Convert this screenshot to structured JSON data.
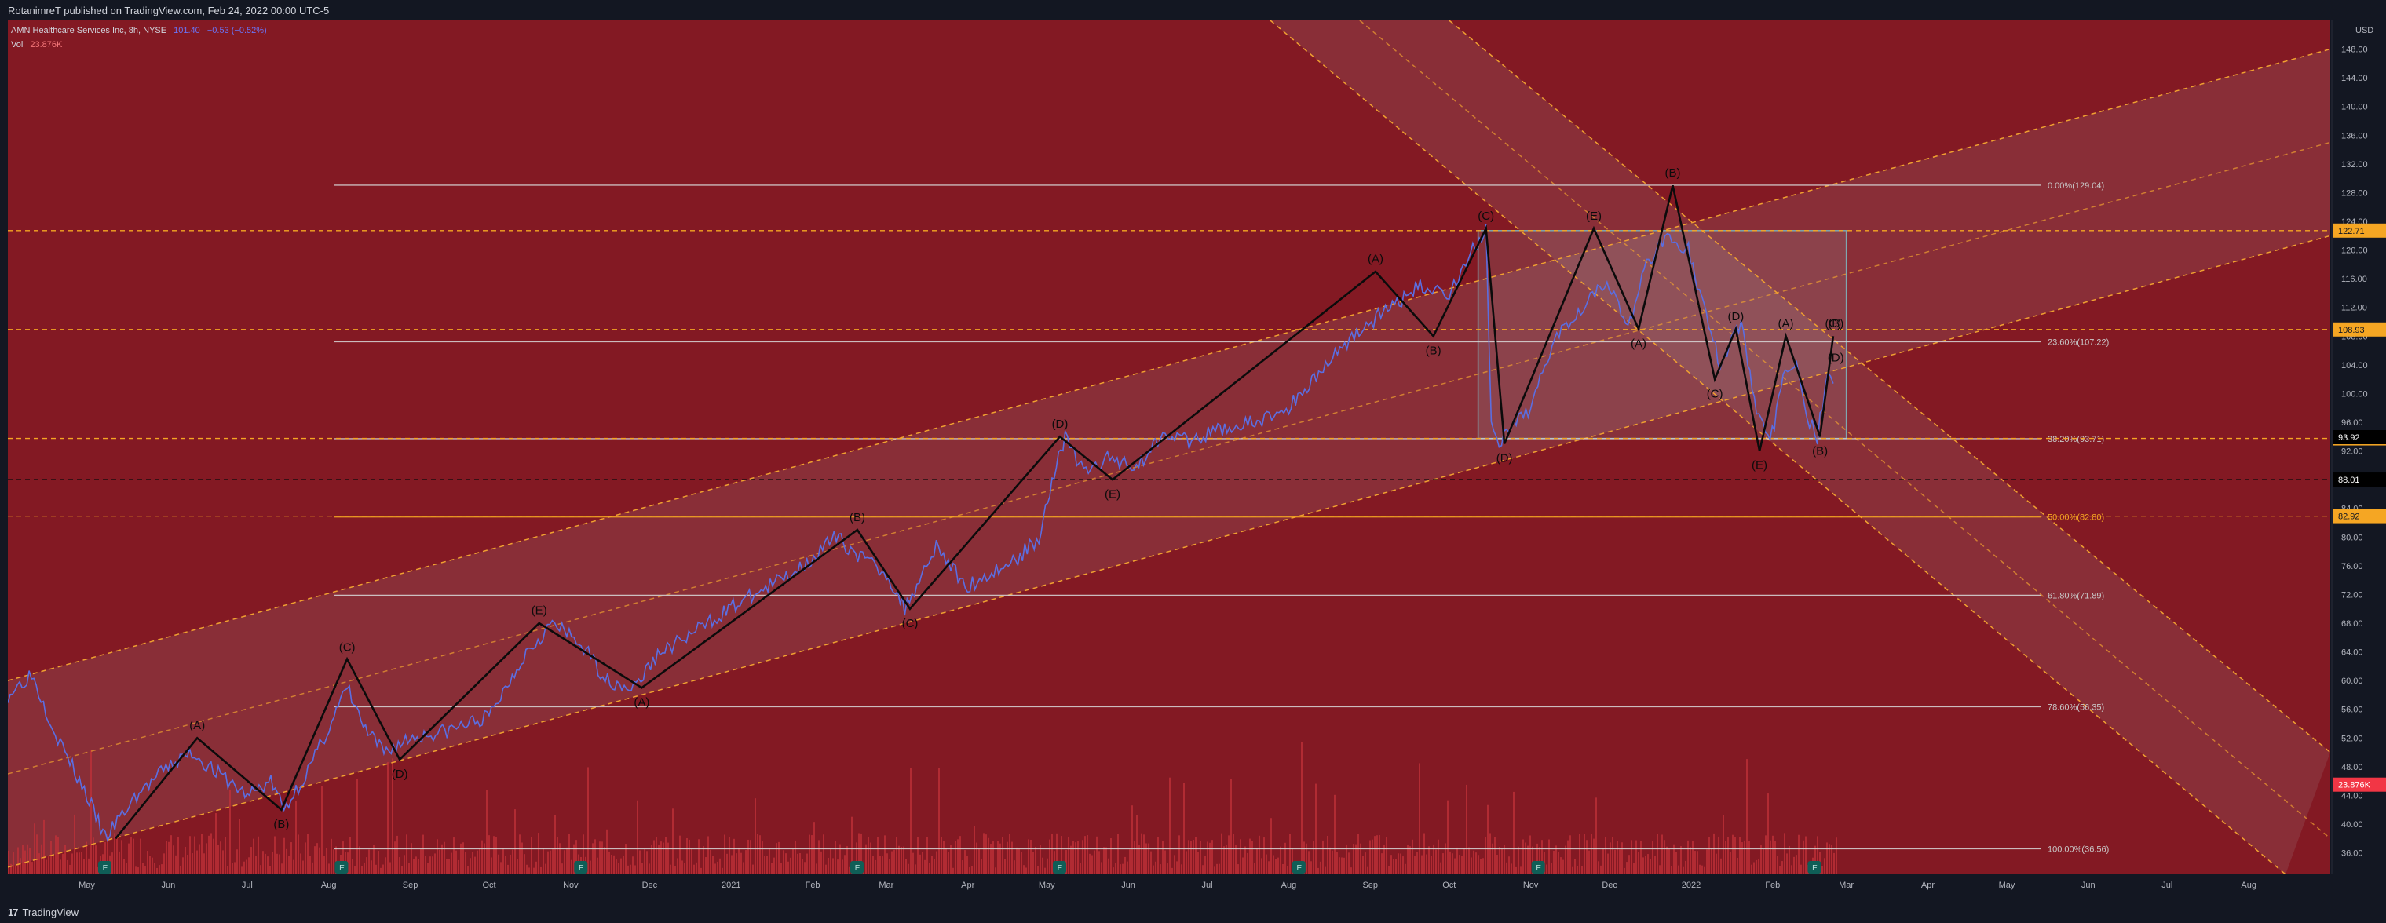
{
  "header": {
    "publisher_line": "RotanimreT published on TradingView.com, Feb 24, 2022 00:00 UTC-5",
    "symbol": "AMN Healthcare Services Inc, 8h, NYSE",
    "last_value": "101.40",
    "change": "−0.53 (−0.52%)",
    "volume_label": "Vol",
    "volume_value": "23.876K"
  },
  "footer": {
    "logo_text": "TradingView",
    "logo_glyph": "17"
  },
  "colors": {
    "background": "#831923",
    "price_line": "#5b6ee1",
    "wave_line": "#0b0b0b",
    "fib_line": "#d8d8d8",
    "channel_dashed": "#f0a030",
    "accent_label": "#f5a623",
    "volume_bar": "#c0323a"
  },
  "chart_data": {
    "type": "line",
    "title": "AMN Healthcare Services Inc, 8h, NYSE",
    "y_axis_unit": "USD",
    "ylim": [
      33,
      152
    ],
    "y_ticks": [
      36,
      40,
      44,
      48,
      52,
      56,
      60,
      64,
      68,
      72,
      76,
      80,
      84,
      88,
      92,
      96,
      100,
      104,
      108,
      112,
      116,
      120,
      124,
      128,
      132,
      136,
      140,
      144,
      148
    ],
    "y_tick_labels": [
      "36.00",
      "40.00",
      "44.00",
      "48.00",
      "52.00",
      "56.00",
      "60.00",
      "64.00",
      "68.00",
      "72.00",
      "76.00",
      "80.00",
      "84.00",
      "88.00",
      "92.00",
      "96.00",
      "100.00",
      "104.00",
      "108.00",
      "112.00",
      "116.00",
      "120.00",
      "124.00",
      "128.00",
      "132.00",
      "136.00",
      "140.00",
      "144.00",
      "148.00"
    ],
    "x_range": [
      "2020-04-01",
      "2022-09-01"
    ],
    "x_ticks": [
      {
        "date": "2020-05-01",
        "label": "May"
      },
      {
        "date": "2020-06-01",
        "label": "Jun"
      },
      {
        "date": "2020-07-01",
        "label": "Jul"
      },
      {
        "date": "2020-08-01",
        "label": "Aug"
      },
      {
        "date": "2020-09-01",
        "label": "Sep"
      },
      {
        "date": "2020-10-01",
        "label": "Oct"
      },
      {
        "date": "2020-11-01",
        "label": "Nov"
      },
      {
        "date": "2020-12-01",
        "label": "Dec"
      },
      {
        "date": "2021-01-01",
        "label": "2021"
      },
      {
        "date": "2021-02-01",
        "label": "Feb"
      },
      {
        "date": "2021-03-01",
        "label": "Mar"
      },
      {
        "date": "2021-04-01",
        "label": "Apr"
      },
      {
        "date": "2021-05-01",
        "label": "May"
      },
      {
        "date": "2021-06-01",
        "label": "Jun"
      },
      {
        "date": "2021-07-01",
        "label": "Jul"
      },
      {
        "date": "2021-08-01",
        "label": "Aug"
      },
      {
        "date": "2021-09-01",
        "label": "Sep"
      },
      {
        "date": "2021-10-01",
        "label": "Oct"
      },
      {
        "date": "2021-11-01",
        "label": "Nov"
      },
      {
        "date": "2021-12-01",
        "label": "Dec"
      },
      {
        "date": "2022-01-01",
        "label": "2022"
      },
      {
        "date": "2022-02-01",
        "label": "Feb"
      },
      {
        "date": "2022-03-01",
        "label": "Mar"
      },
      {
        "date": "2022-04-01",
        "label": "Apr"
      },
      {
        "date": "2022-05-01",
        "label": "May"
      },
      {
        "date": "2022-06-01",
        "label": "Jun"
      },
      {
        "date": "2022-07-01",
        "label": "Jul"
      },
      {
        "date": "2022-08-01",
        "label": "Aug"
      }
    ],
    "price_series": {
      "name": "AMN Healthcare Services Inc",
      "points": [
        [
          "2020-04-01",
          58
        ],
        [
          "2020-04-10",
          61
        ],
        [
          "2020-04-20",
          52
        ],
        [
          "2020-05-01",
          44
        ],
        [
          "2020-05-08",
          38
        ],
        [
          "2020-05-20",
          44
        ],
        [
          "2020-06-01",
          48
        ],
        [
          "2020-06-10",
          50
        ],
        [
          "2020-06-20",
          47
        ],
        [
          "2020-07-01",
          44
        ],
        [
          "2020-07-10",
          46
        ],
        [
          "2020-07-15",
          42
        ],
        [
          "2020-07-25",
          48
        ],
        [
          "2020-08-03",
          55
        ],
        [
          "2020-08-08",
          59
        ],
        [
          "2020-08-15",
          53
        ],
        [
          "2020-08-22",
          50
        ],
        [
          "2020-09-01",
          52
        ],
        [
          "2020-09-15",
          53
        ],
        [
          "2020-10-01",
          55
        ],
        [
          "2020-10-15",
          64
        ],
        [
          "2020-10-25",
          68
        ],
        [
          "2020-11-05",
          65
        ],
        [
          "2020-11-15",
          60
        ],
        [
          "2020-11-25",
          59
        ],
        [
          "2020-12-05",
          64
        ],
        [
          "2020-12-15",
          66
        ],
        [
          "2020-12-31",
          70
        ],
        [
          "2021-01-15",
          73
        ],
        [
          "2021-01-28",
          76
        ],
        [
          "2021-02-10",
          80
        ],
        [
          "2021-02-20",
          77
        ],
        [
          "2021-03-01",
          75
        ],
        [
          "2021-03-08",
          70
        ],
        [
          "2021-03-20",
          79
        ],
        [
          "2021-03-31",
          73
        ],
        [
          "2021-04-10",
          75
        ],
        [
          "2021-04-20",
          77
        ],
        [
          "2021-04-28",
          80
        ],
        [
          "2021-05-03",
          88
        ],
        [
          "2021-05-08",
          94
        ],
        [
          "2021-05-15",
          89
        ],
        [
          "2021-05-25",
          91
        ],
        [
          "2021-06-05",
          90
        ],
        [
          "2021-06-15",
          95
        ],
        [
          "2021-06-25",
          93
        ],
        [
          "2021-07-05",
          95
        ],
        [
          "2021-07-20",
          96
        ],
        [
          "2021-08-01",
          98
        ],
        [
          "2021-08-15",
          104
        ],
        [
          "2021-08-25",
          108
        ],
        [
          "2021-09-05",
          111
        ],
        [
          "2021-09-20",
          115
        ],
        [
          "2021-10-01",
          114
        ],
        [
          "2021-10-10",
          120
        ],
        [
          "2021-10-15",
          123
        ],
        [
          "2021-10-17",
          95
        ],
        [
          "2021-10-20",
          93
        ],
        [
          "2021-11-01",
          98
        ],
        [
          "2021-11-10",
          108
        ],
        [
          "2021-11-20",
          112
        ],
        [
          "2021-11-30",
          116
        ],
        [
          "2021-12-08",
          109
        ],
        [
          "2021-12-15",
          118
        ],
        [
          "2021-12-22",
          122
        ],
        [
          "2021-12-31",
          120
        ],
        [
          "2022-01-05",
          113
        ],
        [
          "2022-01-12",
          104
        ],
        [
          "2022-01-20",
          110
        ],
        [
          "2022-01-25",
          99
        ],
        [
          "2022-01-31",
          93
        ],
        [
          "2022-02-05",
          102
        ],
        [
          "2022-02-10",
          105
        ],
        [
          "2022-02-14",
          97
        ],
        [
          "2022-02-18",
          94
        ],
        [
          "2022-02-22",
          103
        ],
        [
          "2022-02-24",
          101.4
        ]
      ]
    },
    "volume_series": {
      "name": "Vol",
      "last_value": "23.876K",
      "max_shown_k": 90
    },
    "elliott_waves": [
      {
        "points": [
          [
            "2020-05-12",
            38
          ],
          [
            "2020-06-12",
            52
          ],
          [
            "2020-07-14",
            42
          ],
          [
            "2020-08-08",
            63
          ],
          [
            "2020-08-28",
            49
          ],
          [
            "2020-10-20",
            68
          ],
          [
            "2020-11-28",
            59
          ],
          [
            "2021-02-18",
            81
          ],
          [
            "2021-03-10",
            70
          ],
          [
            "2021-05-06",
            94
          ],
          [
            "2021-05-26",
            88
          ],
          [
            "2021-09-03",
            117
          ],
          [
            "2021-09-25",
            108
          ],
          [
            "2021-10-15",
            123
          ],
          [
            "2021-10-22",
            93
          ],
          [
            "2021-11-25",
            123
          ],
          [
            "2021-12-12",
            109
          ],
          [
            "2021-12-25",
            129
          ],
          [
            "2022-01-10",
            102
          ],
          [
            "2022-01-18",
            109
          ],
          [
            "2022-01-27",
            92
          ],
          [
            "2022-02-06",
            108
          ],
          [
            "2022-02-19",
            94
          ],
          [
            "2022-02-24",
            108
          ]
        ]
      }
    ],
    "wave_labels": [
      {
        "text": "(A)",
        "date": "2020-06-12",
        "price": 52.8,
        "pos": "above"
      },
      {
        "text": "(B)",
        "date": "2020-07-14",
        "price": 41,
        "pos": "below"
      },
      {
        "text": "(C)",
        "date": "2020-08-08",
        "price": 63.7,
        "pos": "above"
      },
      {
        "text": "(D)",
        "date": "2020-08-28",
        "price": 48,
        "pos": "below"
      },
      {
        "text": "(E)",
        "date": "2020-10-20",
        "price": 68.8,
        "pos": "above"
      },
      {
        "text": "(A)",
        "date": "2020-11-28",
        "price": 58,
        "pos": "below"
      },
      {
        "text": "(B)",
        "date": "2021-02-18",
        "price": 81.8,
        "pos": "above"
      },
      {
        "text": "(C)",
        "date": "2021-03-10",
        "price": 69,
        "pos": "below"
      },
      {
        "text": "(D)",
        "date": "2021-05-06",
        "price": 94.8,
        "pos": "above"
      },
      {
        "text": "(E)",
        "date": "2021-05-26",
        "price": 87,
        "pos": "below"
      },
      {
        "text": "(A)",
        "date": "2021-09-03",
        "price": 117.8,
        "pos": "above"
      },
      {
        "text": "(B)",
        "date": "2021-09-25",
        "price": 107,
        "pos": "below"
      },
      {
        "text": "(C)",
        "date": "2021-10-15",
        "price": 123.8,
        "pos": "above"
      },
      {
        "text": "(D)",
        "date": "2021-10-22",
        "price": 92,
        "pos": "below"
      },
      {
        "text": "(E)",
        "date": "2021-11-25",
        "price": 123.8,
        "pos": "above"
      },
      {
        "text": "(A)",
        "date": "2021-12-12",
        "price": 108,
        "pos": "below"
      },
      {
        "text": "(B)",
        "date": "2021-12-25",
        "price": 129.8,
        "pos": "above"
      },
      {
        "text": "(C)",
        "date": "2022-01-10",
        "price": 101,
        "pos": "below"
      },
      {
        "text": "(D)",
        "date": "2022-01-18",
        "price": 109.8,
        "pos": "above"
      },
      {
        "text": "(E)",
        "date": "2022-01-27",
        "price": 91,
        "pos": "below"
      },
      {
        "text": "(A)",
        "date": "2022-02-06",
        "price": 108.8,
        "pos": "above"
      },
      {
        "text": "(B)",
        "date": "2022-02-19",
        "price": 93,
        "pos": "below"
      },
      {
        "text": "(C)",
        "date": "2022-02-24",
        "price": 108.8,
        "pos": "above"
      },
      {
        "text": "(B)",
        "date": "2022-02-25",
        "price": 108.8,
        "pos": "above"
      },
      {
        "text": "(D)",
        "date": "2022-02-25",
        "price": 106,
        "pos": "below"
      }
    ],
    "fib_levels": [
      {
        "label": "0.00%(129.04)",
        "price": 129.04
      },
      {
        "label": "23.60%(107.22)",
        "price": 107.22
      },
      {
        "label": "38.20%(93.71)",
        "price": 93.71
      },
      {
        "label": "50.00%(82.80)",
        "price": 82.8
      },
      {
        "label": "61.80%(71.89)",
        "price": 71.89
      },
      {
        "label": "78.60%(56.35)",
        "price": 56.35
      },
      {
        "label": "100.00%(36.56)",
        "price": 36.56
      }
    ],
    "fib_start_date": "2020-08-03",
    "fib_label_date": "2022-03-10",
    "horizontal_dashed": [
      {
        "price": 122.71,
        "label": "122.71",
        "color": "#f5a623"
      },
      {
        "price": 108.93,
        "label": "108.93",
        "color": "#f5a623"
      },
      {
        "price": 93.75,
        "label": "93.75",
        "color": "#f5a623"
      },
      {
        "price": 88.01,
        "label": "88.01",
        "color": "#0b0b0b"
      },
      {
        "price": 82.92,
        "label": "82.92",
        "color": "#f5a623"
      }
    ],
    "price_labels": [
      {
        "price": 93.92,
        "label": "93.92",
        "kind": "black"
      },
      {
        "price": 45.5,
        "label": "23.876K",
        "kind": "volume"
      }
    ],
    "up_channel": {
      "lower": [
        [
          "2020-04-01",
          34
        ],
        [
          "2022-09-01",
          122
        ]
      ],
      "upper": [
        [
          "2020-04-01",
          60
        ],
        [
          "2022-09-01",
          148
        ]
      ],
      "mid": [
        [
          "2020-04-01",
          47
        ],
        [
          "2022-09-01",
          135
        ]
      ]
    },
    "down_channel": {
      "upper": [
        [
          "2021-07-25",
          152
        ],
        [
          "2022-08-15",
          33
        ]
      ],
      "lower": [
        [
          "2021-10-01",
          152
        ],
        [
          "2022-09-01",
          50
        ]
      ],
      "mid": [
        [
          "2021-08-28",
          152
        ],
        [
          "2022-09-01",
          38
        ]
      ]
    },
    "range_box": {
      "start": "2021-10-12",
      "end": "2022-03-01",
      "top": 122.71,
      "bottom": 93.75
    },
    "earnings_markers": [
      "2020-05-08",
      "2020-08-06",
      "2020-11-05",
      "2021-02-18",
      "2021-05-06",
      "2021-08-05",
      "2021-11-04",
      "2022-02-17"
    ]
  }
}
